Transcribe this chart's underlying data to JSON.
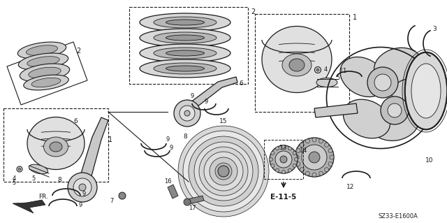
{
  "bg_color": "#ffffff",
  "line_color": "#1a1a1a",
  "diagram_code": "SZ33-E1600A",
  "figsize": [
    6.4,
    3.19
  ],
  "dpi": 100
}
